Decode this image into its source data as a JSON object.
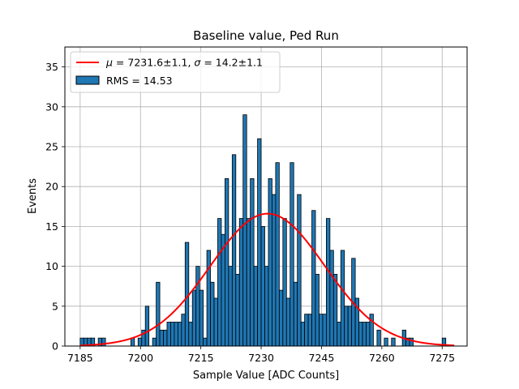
{
  "chart_data": {
    "type": "bar",
    "title": "Baseline value, Ped Run",
    "xlabel": "Sample Value [ADC Counts]",
    "ylabel": "Events",
    "xlim": [
      7181.2,
      7281.2
    ],
    "ylim": [
      0,
      37.5
    ],
    "xticks": [
      "7185",
      "7200",
      "7215",
      "7230",
      "7245",
      "7260",
      "7275"
    ],
    "yticks": [
      "0",
      "5",
      "10",
      "15",
      "20",
      "25",
      "30",
      "35"
    ],
    "grid": true,
    "legend_position": "top-left",
    "bar_color": "#1f77b4",
    "fit_color": "#ff0000",
    "bins": {
      "start": 7185.0,
      "width": 0.9,
      "counts": [
        1,
        1,
        1,
        1,
        0,
        1,
        1,
        0,
        0,
        0,
        0,
        0,
        0,
        0,
        1,
        0,
        1,
        2,
        5,
        0,
        1,
        8,
        2,
        2,
        3,
        3,
        3,
        3,
        4,
        13,
        3,
        7,
        10,
        7,
        1,
        12,
        8,
        6,
        16,
        14,
        21,
        10,
        24,
        9,
        16,
        29,
        16,
        21,
        10,
        26,
        15,
        10,
        21,
        19,
        23,
        7,
        16,
        6,
        23,
        8,
        19,
        3,
        4,
        4,
        17,
        9,
        4,
        4,
        16,
        12,
        9,
        3,
        12,
        5,
        5,
        11,
        6,
        3,
        3,
        3,
        4,
        0,
        2,
        0,
        1,
        0,
        1,
        0,
        0,
        2,
        1,
        1,
        0,
        0,
        0,
        0,
        0,
        0,
        0,
        0,
        1
      ]
    },
    "series": [
      {
        "name": "$\\mu = 7231.6 \\pm 1.1$, $\\sigma = 14.2 \\pm 1.1$",
        "type": "line",
        "color": "#ff0000",
        "mu": 7231.6,
        "sigma": 14.2,
        "amplitude": 16.6,
        "x_range": [
          7185,
          7278
        ]
      },
      {
        "name": "RMS = 14.53",
        "type": "bar",
        "color": "#1f77b4"
      }
    ]
  },
  "legend": {
    "fit_label_mu": "μ",
    "fit_label_rest1": " = 7231.6±1.1, ",
    "fit_label_sigma": "σ",
    "fit_label_rest2": " = 14.2±1.1",
    "hist_label": "RMS = 14.53"
  }
}
